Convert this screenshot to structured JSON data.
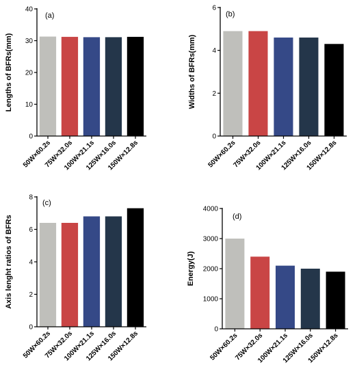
{
  "chart_data": [
    {
      "type": "bar",
      "panel_label": "(a)",
      "categories": [
        "50W×60.2s",
        "75W×32.0s",
        "100W×21.1s",
        "125W×16.0s",
        "150W×12.8s"
      ],
      "values": [
        31.3,
        31.2,
        31.1,
        31.1,
        31.2
      ],
      "ylabel": "Lengths of BFRs(mm)",
      "ylim": [
        0,
        40
      ],
      "yticks": [
        "0",
        "10",
        "20",
        "30",
        "40"
      ],
      "grid": false,
      "colors": [
        "#bfbfbb",
        "#c94545",
        "#354987",
        "#24364a",
        "#000000"
      ]
    },
    {
      "type": "bar",
      "panel_label": "(b)",
      "categories": [
        "50W×60.2s",
        "75W×32.0s",
        "100W×21.1s",
        "125W×16.0s",
        "150W×12.8s"
      ],
      "values": [
        4.9,
        4.9,
        4.6,
        4.6,
        4.3
      ],
      "ylabel": "Widths of BFRs(mm)",
      "ylim": [
        0,
        6
      ],
      "yticks": [
        "0",
        "2",
        "4",
        "6"
      ],
      "grid": false,
      "colors": [
        "#bfbfbb",
        "#c94545",
        "#354987",
        "#24364a",
        "#000000"
      ]
    },
    {
      "type": "bar",
      "panel_label": "(c)",
      "categories": [
        "50W×60.2s",
        "75W×32.0s",
        "100W×21.1s",
        "125W×16.0s",
        "150W×12.8s"
      ],
      "values": [
        6.4,
        6.4,
        6.8,
        6.8,
        7.3
      ],
      "ylabel": "Axis lenght ratios of BFRs",
      "ylim": [
        0,
        8
      ],
      "yticks": [
        "0",
        "2",
        "4",
        "6",
        "8"
      ],
      "grid": false,
      "colors": [
        "#bfbfbb",
        "#c94545",
        "#354987",
        "#24364a",
        "#000000"
      ]
    },
    {
      "type": "bar",
      "panel_label": "(d)",
      "categories": [
        "50W×60.2s",
        "75W×32.0s",
        "100W×21.1s",
        "125W×16.0s",
        "150W×12.8s"
      ],
      "values": [
        3000,
        2400,
        2100,
        2000,
        1900
      ],
      "ylabel": "Energy(J)",
      "ylim": [
        0,
        4000
      ],
      "yticks": [
        "0",
        "1000",
        "2000",
        "3000",
        "4000"
      ],
      "grid": false,
      "colors": [
        "#bfbfbb",
        "#c94545",
        "#354987",
        "#24364a",
        "#000000"
      ]
    }
  ]
}
